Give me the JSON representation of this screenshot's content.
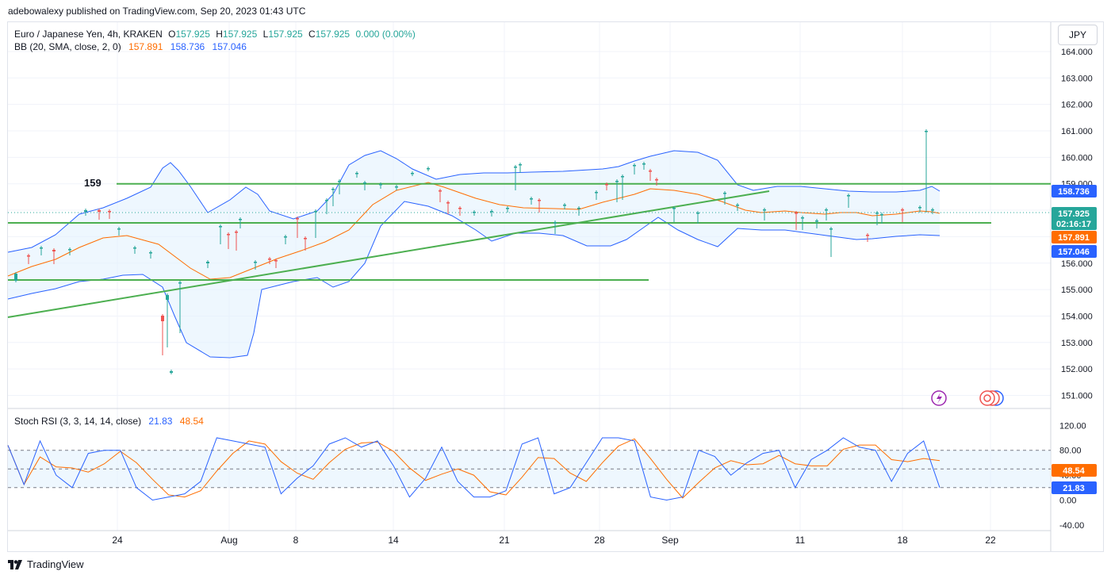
{
  "header": {
    "published": "adebowalexy published on TradingView.com, Sep 20, 2023 01:43 UTC"
  },
  "legend": {
    "symbol": "Euro / Japanese Yen, 4h, KRAKEN",
    "o_label": "O",
    "o": "157.925",
    "h_label": "H",
    "h": "157.925",
    "l_label": "L",
    "l": "157.925",
    "c_label": "C",
    "c": "157.925",
    "change": "0.000 (0.00%)",
    "bb_label": "BB (20, SMA, close, 2, 0)",
    "bb_basis": "157.891",
    "bb_upper": "158.736",
    "bb_lower": "157.046",
    "stoch_label": "Stoch RSI (3, 3, 14, 14, close)",
    "stoch_k": "21.83",
    "stoch_d": "48.54"
  },
  "currency_button": "JPY",
  "price_badges": {
    "upper": "158.736",
    "last": "157.925",
    "countdown": "02:16:17",
    "basis": "157.891",
    "lower": "157.046"
  },
  "stoch_badges": {
    "d": "48.54",
    "k": "21.83"
  },
  "annotation_159": "159",
  "footer_brand": "TradingView",
  "colors": {
    "up": "#26a69a",
    "down": "#ef5350",
    "bb_band": "#2962ff",
    "bb_basis": "#ff6d00",
    "bb_fill": "#e3f2fd",
    "lines": "#4caf50",
    "stoch_k": "#2962ff",
    "stoch_d": "#ff6d00"
  },
  "chart_data": [
    {
      "type": "candlestick",
      "title": "Euro / Japanese Yen, 4h, KRAKEN",
      "ylim": [
        151.0,
        164.0
      ],
      "y_ticks": [
        "164.000",
        "163.000",
        "162.000",
        "161.000",
        "160.000",
        "159.000",
        "158.000",
        "157.000",
        "156.000",
        "155.000",
        "154.000",
        "153.000",
        "152.000",
        "151.000"
      ],
      "x_ticks": [
        "24",
        "Aug",
        "8",
        "14",
        "21",
        "28",
        "Sep",
        "11",
        "18",
        "22"
      ],
      "last_price": 157.925,
      "indicators": {
        "bb": {
          "upper": 158.736,
          "basis": 157.891,
          "lower": 157.046
        },
        "horizontal_lines": [
          159.0,
          157.55,
          155.4
        ],
        "trendline": {
          "from": [
            "start",
            154.0
          ],
          "to": [
            "Sep 9",
            158.7
          ]
        }
      },
      "annotations": [
        "159"
      ]
    },
    {
      "type": "line",
      "title": "Stoch RSI (3, 3, 14, 14, close)",
      "ylim": [
        -40,
        120
      ],
      "y_ticks": [
        "120.00",
        "80.00",
        "40.00",
        "0.00",
        "-40.00"
      ],
      "bands": [
        80,
        50,
        20
      ],
      "series": [
        {
          "name": "K",
          "last": 21.83
        },
        {
          "name": "D",
          "last": 48.54
        }
      ]
    }
  ]
}
